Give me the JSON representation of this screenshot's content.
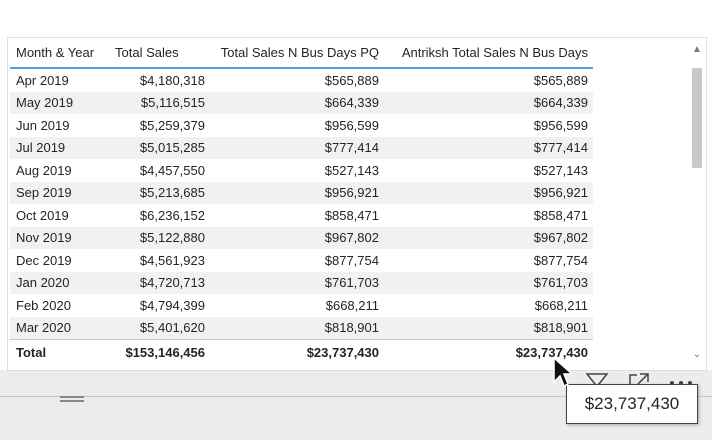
{
  "table": {
    "headers": [
      "Month & Year",
      "Total Sales",
      "Total Sales N Bus Days PQ",
      "Antriksh Total Sales N Bus Days"
    ],
    "rows": [
      [
        "Apr 2019",
        "$4,180,318",
        "$565,889",
        "$565,889"
      ],
      [
        "May 2019",
        "$5,116,515",
        "$664,339",
        "$664,339"
      ],
      [
        "Jun 2019",
        "$5,259,379",
        "$956,599",
        "$956,599"
      ],
      [
        "Jul 2019",
        "$5,015,285",
        "$777,414",
        "$777,414"
      ],
      [
        "Aug 2019",
        "$4,457,550",
        "$527,143",
        "$527,143"
      ],
      [
        "Sep 2019",
        "$5,213,685",
        "$956,921",
        "$956,921"
      ],
      [
        "Oct 2019",
        "$6,236,152",
        "$858,471",
        "$858,471"
      ],
      [
        "Nov 2019",
        "$5,122,880",
        "$967,802",
        "$967,802"
      ],
      [
        "Dec 2019",
        "$4,561,923",
        "$877,754",
        "$877,754"
      ],
      [
        "Jan 2020",
        "$4,720,713",
        "$761,703",
        "$761,703"
      ],
      [
        "Feb 2020",
        "$4,794,399",
        "$668,211",
        "$668,211"
      ],
      [
        "Mar 2020",
        "$5,401,620",
        "$818,901",
        "$818,901"
      ]
    ],
    "total": [
      "Total",
      "$153,146,456",
      "$23,737,430",
      "$23,737,430"
    ]
  },
  "tooltip": {
    "value": "$23,737,430"
  },
  "header_icons": [
    "filter-icon",
    "focus-mode-icon",
    "more-options-icon"
  ],
  "colors": {
    "header_underline": "#5b9bd5",
    "alt_row": "#f1f1f1"
  }
}
